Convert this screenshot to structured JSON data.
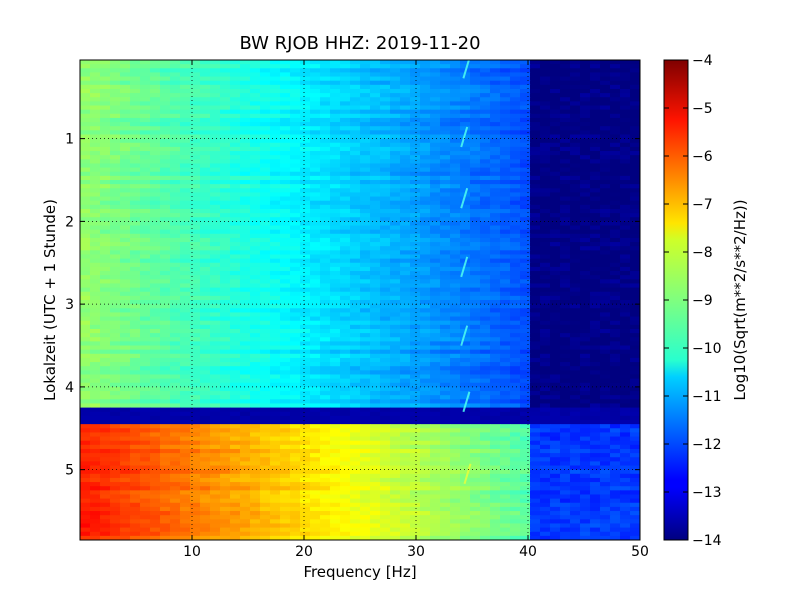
{
  "chart_data": {
    "type": "heatmap",
    "title": "BW RJOB HHZ: 2019-11-20",
    "xlabel": "Frequency [Hz]",
    "ylabel": "Lokalzeit (UTC + 1 Stunde)",
    "xlim": [
      0,
      50
    ],
    "ylim": [
      5.85,
      0.05
    ],
    "x_ticks": [
      10,
      20,
      30,
      40,
      50
    ],
    "y_ticks": [
      1,
      2,
      3,
      4,
      5
    ],
    "grid": true,
    "colormap": "jet",
    "colorbar": {
      "label": "Log10(Sqrt(m**2/s**2/Hz))",
      "range": [
        -14,
        -4
      ],
      "ticks": [
        -4,
        -5,
        -6,
        -7,
        -8,
        -9,
        -10,
        -11,
        -12,
        -13,
        -14
      ]
    },
    "bands": [
      {
        "time_start": 0.05,
        "time_end": 4.25,
        "freq_cutoff": 40,
        "value_at_0hz": -8.8,
        "value_at_cutoff": -12.0,
        "value_above_cutoff": -14.0
      },
      {
        "time_start": 4.25,
        "time_end": 4.45,
        "value": -13.6
      },
      {
        "time_start": 4.45,
        "time_end": 5.85,
        "freq_cutoff": 40,
        "value_at_0hz": -5.5,
        "value_at_cutoff": -9.4,
        "value_above_cutoff": -12.2
      }
    ],
    "annotations": [
      {
        "time": 0.15,
        "freq": 34.5,
        "kind": "tonal-streak"
      },
      {
        "time": 0.98,
        "freq": 34.3,
        "kind": "tonal-streak"
      },
      {
        "time": 1.72,
        "freq": 34.3,
        "kind": "tonal-streak"
      },
      {
        "time": 2.55,
        "freq": 34.3,
        "kind": "tonal-streak"
      },
      {
        "time": 3.38,
        "freq": 34.3,
        "kind": "tonal-streak"
      },
      {
        "time": 4.18,
        "freq": 34.5,
        "kind": "tonal-streak"
      },
      {
        "time": 5.05,
        "freq": 34.6,
        "kind": "tonal-streak"
      }
    ]
  }
}
